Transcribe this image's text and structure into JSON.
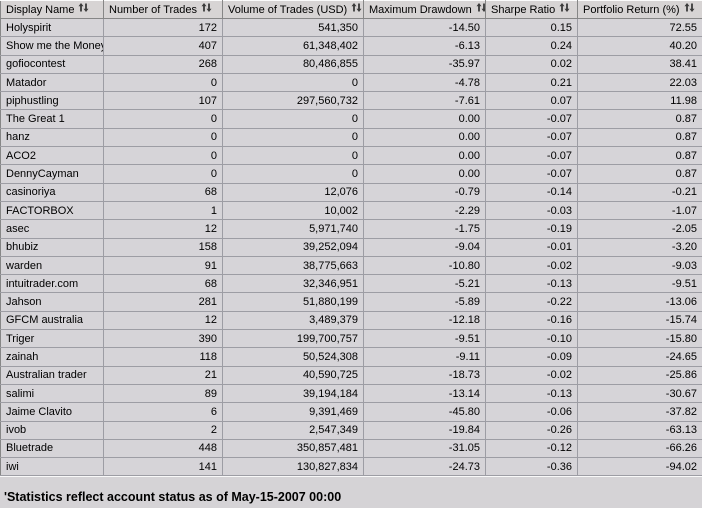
{
  "table": {
    "columns": [
      {
        "label": "Display Name",
        "sort_icon": "up-down-arrows"
      },
      {
        "label": "Number of Trades",
        "sort_icon": "up-down-arrows"
      },
      {
        "label": "Volume of Trades (USD)",
        "sort_icon": "up-down-arrows"
      },
      {
        "label": "Maximum Drawdown",
        "sort_icon": "up-down-arrows"
      },
      {
        "label": "Sharpe Ratio",
        "sort_icon": "up-down-arrows"
      },
      {
        "label": "Portfolio Return (%)",
        "sort_icon": "up-down-arrows"
      }
    ],
    "rows": [
      [
        "Holyspirit",
        "172",
        "541,350",
        "-14.50",
        "0.15",
        "72.55"
      ],
      [
        "Show me the Money",
        "407",
        "61,348,402",
        "-6.13",
        "0.24",
        "40.20"
      ],
      [
        "gofiocontest",
        "268",
        "80,486,855",
        "-35.97",
        "0.02",
        "38.41"
      ],
      [
        "Matador",
        "0",
        "0",
        "-4.78",
        "0.21",
        "22.03"
      ],
      [
        "piphustling",
        "107",
        "297,560,732",
        "-7.61",
        "0.07",
        "11.98"
      ],
      [
        "The Great 1",
        "0",
        "0",
        "0.00",
        "-0.07",
        "0.87"
      ],
      [
        "hanz",
        "0",
        "0",
        "0.00",
        "-0.07",
        "0.87"
      ],
      [
        "ACO2",
        "0",
        "0",
        "0.00",
        "-0.07",
        "0.87"
      ],
      [
        "DennyCayman",
        "0",
        "0",
        "0.00",
        "-0.07",
        "0.87"
      ],
      [
        "casinoriya",
        "68",
        "12,076",
        "-0.79",
        "-0.14",
        "-0.21"
      ],
      [
        "FACTORBOX",
        "1",
        "10,002",
        "-2.29",
        "-0.03",
        "-1.07"
      ],
      [
        "asec",
        "12",
        "5,971,740",
        "-1.75",
        "-0.19",
        "-2.05"
      ],
      [
        "bhubiz",
        "158",
        "39,252,094",
        "-9.04",
        "-0.01",
        "-3.20"
      ],
      [
        "warden",
        "91",
        "38,775,663",
        "-10.80",
        "-0.02",
        "-9.03"
      ],
      [
        "intuitrader.com",
        "68",
        "32,346,951",
        "-5.21",
        "-0.13",
        "-9.51"
      ],
      [
        "Jahson",
        "281",
        "51,880,199",
        "-5.89",
        "-0.22",
        "-13.06"
      ],
      [
        "GFCM australia",
        "12",
        "3,489,379",
        "-12.18",
        "-0.16",
        "-15.74"
      ],
      [
        "Triger",
        "390",
        "199,700,757",
        "-9.51",
        "-0.10",
        "-15.80"
      ],
      [
        "zainah",
        "118",
        "50,524,308",
        "-9.11",
        "-0.09",
        "-24.65"
      ],
      [
        "Australian trader",
        "21",
        "40,590,725",
        "-18.73",
        "-0.02",
        "-25.86"
      ],
      [
        "salimi",
        "89",
        "39,194,184",
        "-13.14",
        "-0.13",
        "-30.67"
      ],
      [
        "Jaime Clavito",
        "6",
        "9,391,469",
        "-45.80",
        "-0.06",
        "-37.82"
      ],
      [
        "ivob",
        "2",
        "2,547,349",
        "-19.84",
        "-0.26",
        "-63.13"
      ],
      [
        "Bluetrade",
        "448",
        "350,857,481",
        "-31.05",
        "-0.12",
        "-66.26"
      ],
      [
        "iwi",
        "141",
        "130,827,834",
        "-24.73",
        "-0.36",
        "-94.02"
      ]
    ]
  },
  "footer": {
    "note": "'Statistics reflect account status as of May-15-2007 00:00"
  },
  "colors": {
    "background": "#d5d3d6",
    "row_background": "#d6d4d8",
    "gridline": "#9d9da4",
    "header_shadow": "#868686",
    "header_highlight": "#fbfbfb",
    "text": "#000000"
  }
}
